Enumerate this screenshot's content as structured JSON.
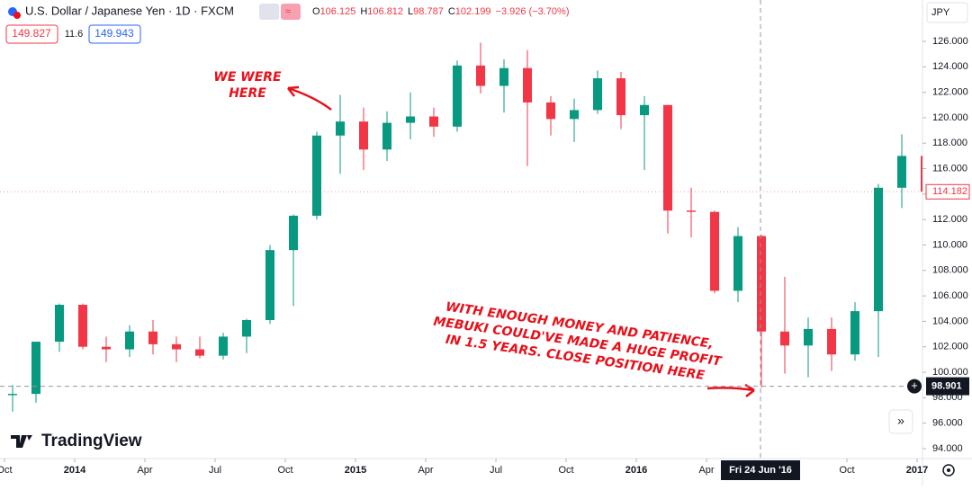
{
  "header": {
    "title": "U.S. Dollar / Japanese Yen · 1D · FXCM",
    "ohlc": [
      {
        "label": "O",
        "value": 106.125
      },
      {
        "label": "H",
        "value": 106.812
      },
      {
        "label": "L",
        "value": 98.787
      },
      {
        "label": "C",
        "value": 102.199
      }
    ],
    "change": "−3.926 (−3.70%)",
    "sell_price": "149.827",
    "spread": "11.6",
    "buy_price": "149.943"
  },
  "currency": "JPY",
  "logo": "TradingView",
  "chart_data": {
    "type": "candlestick",
    "up_color": "#089981",
    "down_color": "#f23645",
    "grid": false,
    "x": [
      "2013-10",
      "2013-11",
      "2013-12",
      "2014-01",
      "2014-02",
      "2014-03",
      "2014-04",
      "2014-05",
      "2014-06",
      "2014-07",
      "2014-08",
      "2014-09",
      "2014-10",
      "2014-11",
      "2014-12",
      "2015-01",
      "2015-02",
      "2015-03",
      "2015-04",
      "2015-05",
      "2015-06",
      "2015-07",
      "2015-08",
      "2015-09",
      "2015-10",
      "2015-11",
      "2015-12",
      "2016-01",
      "2016-02",
      "2016-03",
      "2016-04",
      "2016-05",
      "2016-06",
      "2016-07",
      "2016-08",
      "2016-09",
      "2016-10",
      "2016-11",
      "2016-12",
      "2017-01"
    ],
    "open": [
      98.2,
      98.3,
      102.4,
      105.3,
      102.0,
      101.8,
      103.2,
      102.2,
      101.8,
      101.3,
      102.8,
      104.1,
      109.6,
      112.3,
      118.6,
      119.7,
      117.5,
      119.6,
      120.1,
      119.3,
      124.1,
      122.5,
      123.9,
      121.2,
      119.9,
      120.6,
      123.1,
      120.2,
      121.0,
      112.7,
      112.6,
      106.4,
      110.7,
      103.2,
      102.1,
      103.4,
      101.4,
      104.8,
      114.5,
      117.0
    ],
    "high": [
      99.0,
      102.4,
      105.4,
      105.4,
      102.8,
      103.7,
      104.1,
      102.8,
      102.8,
      103.1,
      104.2,
      110.0,
      112.4,
      118.9,
      121.8,
      120.8,
      120.5,
      122.0,
      120.8,
      124.5,
      125.9,
      124.6,
      125.3,
      121.7,
      121.5,
      123.7,
      123.6,
      121.7,
      121.0,
      114.5,
      112.7,
      111.4,
      110.8,
      107.5,
      104.3,
      104.3,
      105.5,
      114.8,
      118.7,
      118.6
    ],
    "low": [
      96.9,
      97.6,
      101.6,
      101.8,
      100.8,
      101.2,
      101.4,
      100.8,
      101.1,
      101.0,
      101.5,
      103.8,
      105.2,
      112.0,
      115.6,
      115.9,
      116.6,
      118.3,
      118.5,
      118.9,
      121.9,
      120.4,
      116.2,
      118.6,
      118.1,
      120.3,
      119.1,
      115.9,
      110.9,
      110.6,
      106.2,
      105.5,
      98.8,
      99.9,
      99.6,
      100.1,
      100.9,
      101.2,
      112.9,
      112.5
    ],
    "close": [
      98.3,
      102.4,
      105.3,
      102.0,
      101.8,
      103.2,
      102.2,
      101.8,
      101.3,
      102.8,
      104.1,
      109.6,
      112.3,
      118.6,
      119.7,
      117.5,
      119.6,
      120.1,
      119.3,
      124.1,
      122.5,
      123.9,
      121.2,
      119.9,
      120.6,
      123.1,
      120.2,
      121.0,
      112.7,
      112.6,
      106.4,
      110.7,
      103.2,
      102.1,
      103.4,
      101.4,
      104.8,
      114.5,
      117.0,
      114.2
    ],
    "ylim": [
      93.22,
      129.25
    ],
    "yticks": [
      {
        "value": 94,
        "label": "94.000"
      },
      {
        "value": 96,
        "label": "96.000"
      },
      {
        "value": 98,
        "label": "98.000"
      },
      {
        "value": 100,
        "label": "100.000"
      },
      {
        "value": 102,
        "label": "102.000"
      },
      {
        "value": 104,
        "label": "104.000"
      },
      {
        "value": 106,
        "label": "106.000"
      },
      {
        "value": 108,
        "label": "108.000"
      },
      {
        "value": 110,
        "label": "110.000"
      },
      {
        "value": 112,
        "label": "112.000"
      },
      {
        "value": 114,
        "label": "114.000"
      },
      {
        "value": 116,
        "label": "116.000"
      },
      {
        "value": 118,
        "label": "118.000"
      },
      {
        "value": 120,
        "label": "120.000"
      },
      {
        "value": 122,
        "label": "122.000"
      },
      {
        "value": 124,
        "label": "124.000"
      },
      {
        "value": 126,
        "label": "126.000"
      }
    ],
    "xticks": [
      {
        "value": "2013-10",
        "label": "Oct"
      },
      {
        "value": "2014-01",
        "label": "2014"
      },
      {
        "value": "2014-04",
        "label": "Apr"
      },
      {
        "value": "2014-07",
        "label": "Jul"
      },
      {
        "value": "2014-10",
        "label": "Oct"
      },
      {
        "value": "2015-01",
        "label": "2015"
      },
      {
        "value": "2015-04",
        "label": "Apr"
      },
      {
        "value": "2015-07",
        "label": "Jul"
      },
      {
        "value": "2015-10",
        "label": "Oct"
      },
      {
        "value": "2016-01",
        "label": "2016"
      },
      {
        "value": "2016-04",
        "label": "Apr"
      },
      {
        "value": "2016-10",
        "label": "Oct"
      },
      {
        "value": "2017-01",
        "label": "2017"
      }
    ],
    "last_price": 114.182,
    "crosshair": {
      "price": 98.901,
      "date_label": "Fri 24 Jun '16"
    },
    "annotations": [
      {
        "lines": [
          "WE WERE",
          "HERE"
        ]
      },
      {
        "lines": [
          "WITH ENOUGH MONEY AND PATIENCE,",
          "MEBUKI COULD'VE MADE A HUGE PROFIT",
          "IN 1.5 YEARS. CLOSE POSITION HERE"
        ]
      }
    ]
  }
}
